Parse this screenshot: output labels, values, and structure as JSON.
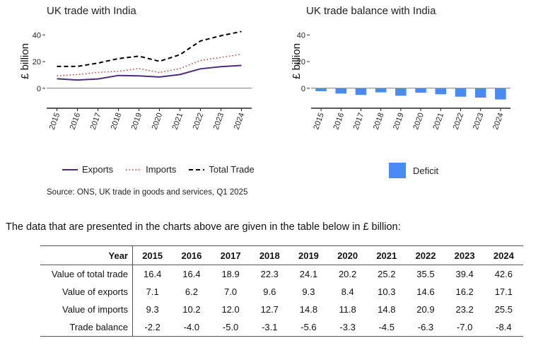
{
  "chart_data": [
    {
      "type": "line",
      "title": "UK trade with India",
      "ylabel": "£ billion",
      "xlabel": "",
      "ylim": [
        -15,
        45
      ],
      "yticks": [
        0,
        20,
        40
      ],
      "categories": [
        "2015",
        "2016",
        "2017",
        "2018",
        "2019",
        "2020",
        "2021",
        "2022",
        "2023",
        "2024"
      ],
      "series": [
        {
          "name": "Exports",
          "values": [
            7.1,
            6.2,
            7.0,
            9.6,
            9.3,
            8.4,
            10.3,
            14.6,
            16.2,
            17.1
          ],
          "color": "#4b2c7e",
          "style": "solid"
        },
        {
          "name": "Imports",
          "values": [
            9.3,
            10.2,
            12.0,
            12.7,
            14.8,
            11.8,
            14.8,
            20.9,
            23.2,
            25.5
          ],
          "color": "#c0392b",
          "style": "dotted"
        },
        {
          "name": "Total Trade",
          "values": [
            16.4,
            16.4,
            18.9,
            22.3,
            24.1,
            20.2,
            25.2,
            35.5,
            39.4,
            42.6
          ],
          "color": "#000000",
          "style": "dashed"
        }
      ]
    },
    {
      "type": "bar",
      "title": "UK trade balance with India",
      "ylabel": "£ billion",
      "xlabel": "",
      "ylim": [
        -15,
        45
      ],
      "yticks": [
        0,
        20,
        40
      ],
      "categories": [
        "2015",
        "2016",
        "2017",
        "2018",
        "2019",
        "2020",
        "2021",
        "2022",
        "2023",
        "2024"
      ],
      "series": [
        {
          "name": "Deficit",
          "values": [
            -2.2,
            -4.0,
            -5.0,
            -3.1,
            -5.6,
            -3.3,
            -4.5,
            -6.3,
            -7.0,
            -8.4
          ],
          "color": "#4a8af4"
        }
      ]
    }
  ],
  "source": "Source: ONS, UK trade in goods and services, Q1 2025",
  "intro": "The data that are presented in the charts above are given in the table below in £ billion:",
  "table": {
    "corner": "Year",
    "years": [
      "2015",
      "2016",
      "2017",
      "2018",
      "2019",
      "2020",
      "2021",
      "2022",
      "2023",
      "2024"
    ],
    "rows": [
      {
        "label": "Value of total trade",
        "values": [
          "16.4",
          "16.4",
          "18.9",
          "22.3",
          "24.1",
          "20.2",
          "25.2",
          "35.5",
          "39.4",
          "42.6"
        ]
      },
      {
        "label": "Value of exports",
        "values": [
          "7.1",
          "6.2",
          "7.0",
          "9.6",
          "9.3",
          "8.4",
          "10.3",
          "14.6",
          "16.2",
          "17.1"
        ]
      },
      {
        "label": "Value of imports",
        "values": [
          "9.3",
          "10.2",
          "12.0",
          "12.7",
          "14.8",
          "11.8",
          "14.8",
          "20.9",
          "23.2",
          "25.5"
        ]
      },
      {
        "label": "Trade balance",
        "values": [
          "-2.2",
          "-4.0",
          "-5.0",
          "-3.1",
          "-5.6",
          "-3.3",
          "-4.5",
          "-6.3",
          "-7.0",
          "-8.4"
        ]
      }
    ]
  }
}
